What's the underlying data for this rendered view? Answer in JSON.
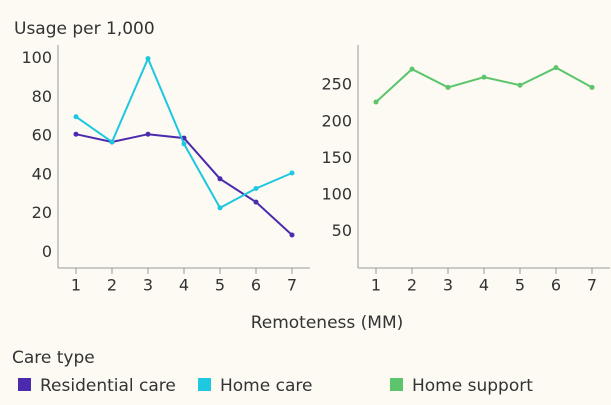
{
  "title": "Usage per 1,000",
  "xlabel": "Remoteness (MM)",
  "legend_title": "Care type",
  "chart_data": [
    {
      "type": "line",
      "x": [
        1,
        2,
        3,
        4,
        5,
        6,
        7
      ],
      "xlim": [
        0.5,
        7.5
      ],
      "xticks": [
        1,
        2,
        3,
        4,
        5,
        6,
        7
      ],
      "ylim": [
        -8,
        107
      ],
      "yticks": [
        0,
        20,
        40,
        60,
        80,
        100
      ],
      "series": [
        {
          "name": "Residential care",
          "color": "#4b2aad",
          "values": [
            61,
            57,
            61,
            59,
            38,
            26,
            9
          ]
        },
        {
          "name": "Home care",
          "color": "#1ec8e0",
          "values": [
            70,
            57,
            100,
            56,
            23,
            33,
            41
          ]
        }
      ]
    },
    {
      "type": "line",
      "x": [
        1,
        2,
        3,
        4,
        5,
        6,
        7
      ],
      "xlim": [
        0.5,
        7.5
      ],
      "xticks": [
        1,
        2,
        3,
        4,
        5,
        6,
        7
      ],
      "ylim": [
        0,
        305
      ],
      "yticks": [
        50,
        100,
        150,
        200,
        250
      ],
      "series": [
        {
          "name": "Home support",
          "color": "#5cc46b",
          "values": [
            227,
            272,
            247,
            261,
            250,
            274,
            247
          ]
        }
      ]
    }
  ]
}
